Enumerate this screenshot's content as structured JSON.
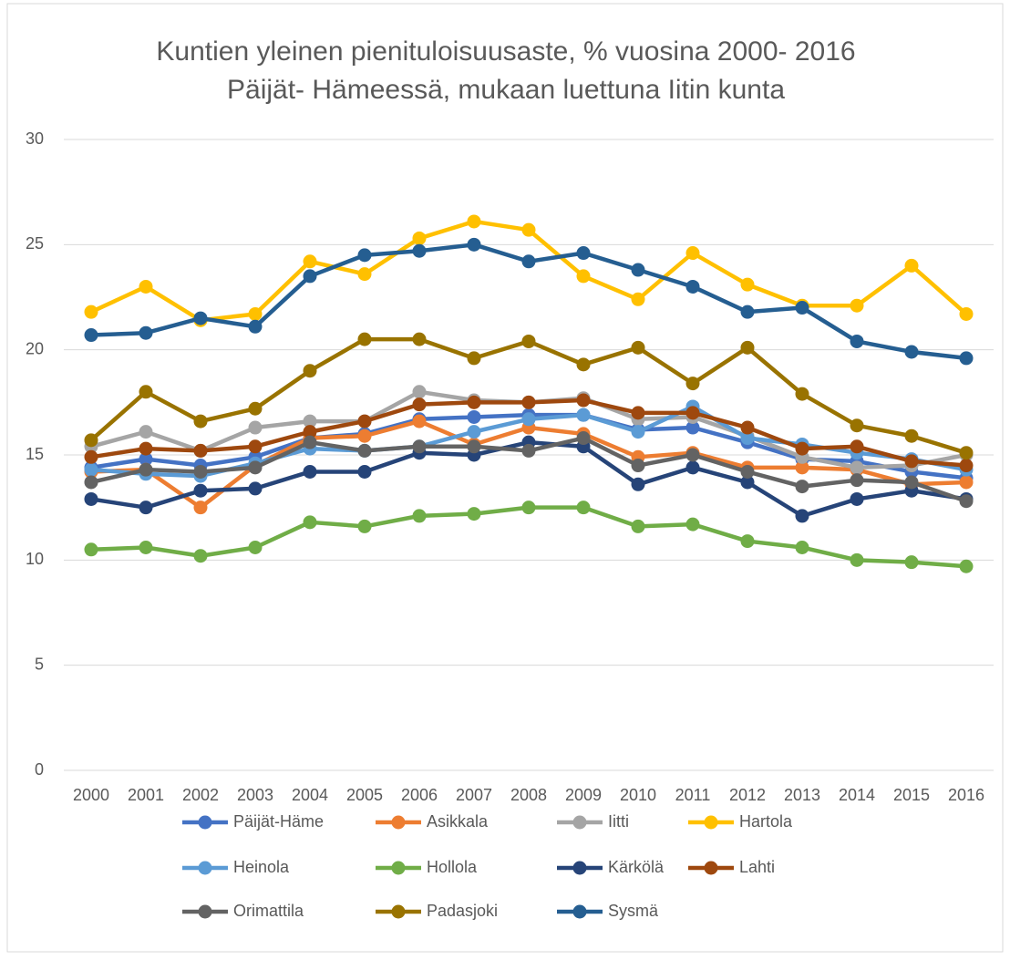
{
  "chart_data": {
    "type": "line",
    "title": "Kuntien yleinen pienituloisuusaste, % vuosina 2000- 2016",
    "subtitle": "Päijät- Hämeessä, mukaan luettuna Iitin kunta",
    "categories": [
      "2000",
      "2001",
      "2002",
      "2003",
      "2004",
      "2005",
      "2006",
      "2007",
      "2008",
      "2009",
      "2010",
      "2011",
      "2012",
      "2013",
      "2014",
      "2015",
      "2016"
    ],
    "ylim": [
      0,
      30
    ],
    "yticks": [
      0,
      5,
      10,
      15,
      20,
      25,
      30
    ],
    "grid": true,
    "legend": "bottom",
    "series": [
      {
        "name": "Päijät-Häme",
        "color": "#4472c4",
        "values": [
          14.4,
          14.8,
          14.5,
          14.9,
          15.8,
          16.0,
          16.7,
          16.8,
          16.9,
          16.9,
          16.2,
          16.3,
          15.6,
          14.8,
          14.7,
          14.2,
          13.9
        ]
      },
      {
        "name": "Asikkala",
        "color": "#ed7d31",
        "values": [
          14.2,
          14.3,
          12.5,
          14.5,
          15.8,
          15.9,
          16.6,
          15.5,
          16.3,
          16.0,
          14.9,
          15.1,
          14.4,
          14.4,
          14.3,
          13.6,
          13.7
        ]
      },
      {
        "name": "Iitti",
        "color": "#a5a5a5",
        "values": [
          15.4,
          16.1,
          15.2,
          16.3,
          16.6,
          16.6,
          18.0,
          17.6,
          17.5,
          17.7,
          16.7,
          16.8,
          15.9,
          14.9,
          14.4,
          14.5,
          15.0
        ]
      },
      {
        "name": "Hartola",
        "color": "#ffc000",
        "values": [
          21.8,
          23.0,
          21.4,
          21.7,
          24.2,
          23.6,
          25.3,
          26.1,
          25.7,
          23.5,
          22.4,
          24.6,
          23.1,
          22.1,
          22.1,
          24.0,
          21.7
        ]
      },
      {
        "name": "Heinola",
        "color": "#5b9bd5",
        "values": [
          14.3,
          14.1,
          14.0,
          14.6,
          15.3,
          15.2,
          15.4,
          16.1,
          16.7,
          16.9,
          16.1,
          17.3,
          15.8,
          15.5,
          15.1,
          14.8,
          14.3
        ]
      },
      {
        "name": "Hollola",
        "color": "#70ad47",
        "values": [
          10.5,
          10.6,
          10.2,
          10.6,
          11.8,
          11.6,
          12.1,
          12.2,
          12.5,
          12.5,
          11.6,
          11.7,
          10.9,
          10.6,
          10.0,
          9.9,
          9.7
        ]
      },
      {
        "name": "Kärkölä",
        "color": "#264478",
        "values": [
          12.9,
          12.5,
          13.3,
          13.4,
          14.2,
          14.2,
          15.1,
          15.0,
          15.6,
          15.4,
          13.6,
          14.4,
          13.7,
          12.1,
          12.9,
          13.3,
          12.9
        ]
      },
      {
        "name": "Lahti",
        "color": "#9e480e",
        "values": [
          14.9,
          15.3,
          15.2,
          15.4,
          16.1,
          16.6,
          17.4,
          17.5,
          17.5,
          17.6,
          17.0,
          17.0,
          16.3,
          15.3,
          15.4,
          14.7,
          14.5
        ]
      },
      {
        "name": "Orimattila",
        "color": "#636363",
        "values": [
          13.7,
          14.3,
          14.2,
          14.4,
          15.6,
          15.2,
          15.4,
          15.4,
          15.2,
          15.8,
          14.5,
          15.0,
          14.2,
          13.5,
          13.8,
          13.7,
          12.8
        ]
      },
      {
        "name": "Padasjoki",
        "color": "#997300",
        "values": [
          15.7,
          18.0,
          16.6,
          17.2,
          19.0,
          20.5,
          20.5,
          19.6,
          20.4,
          19.3,
          20.1,
          18.4,
          20.1,
          17.9,
          16.4,
          15.9,
          15.1
        ]
      },
      {
        "name": "Sysmä",
        "color": "#255e91",
        "values": [
          20.7,
          20.8,
          21.5,
          21.1,
          23.5,
          24.5,
          24.7,
          25.0,
          24.2,
          24.6,
          23.8,
          23.0,
          21.8,
          22.0,
          20.4,
          19.9,
          19.6
        ]
      }
    ]
  }
}
